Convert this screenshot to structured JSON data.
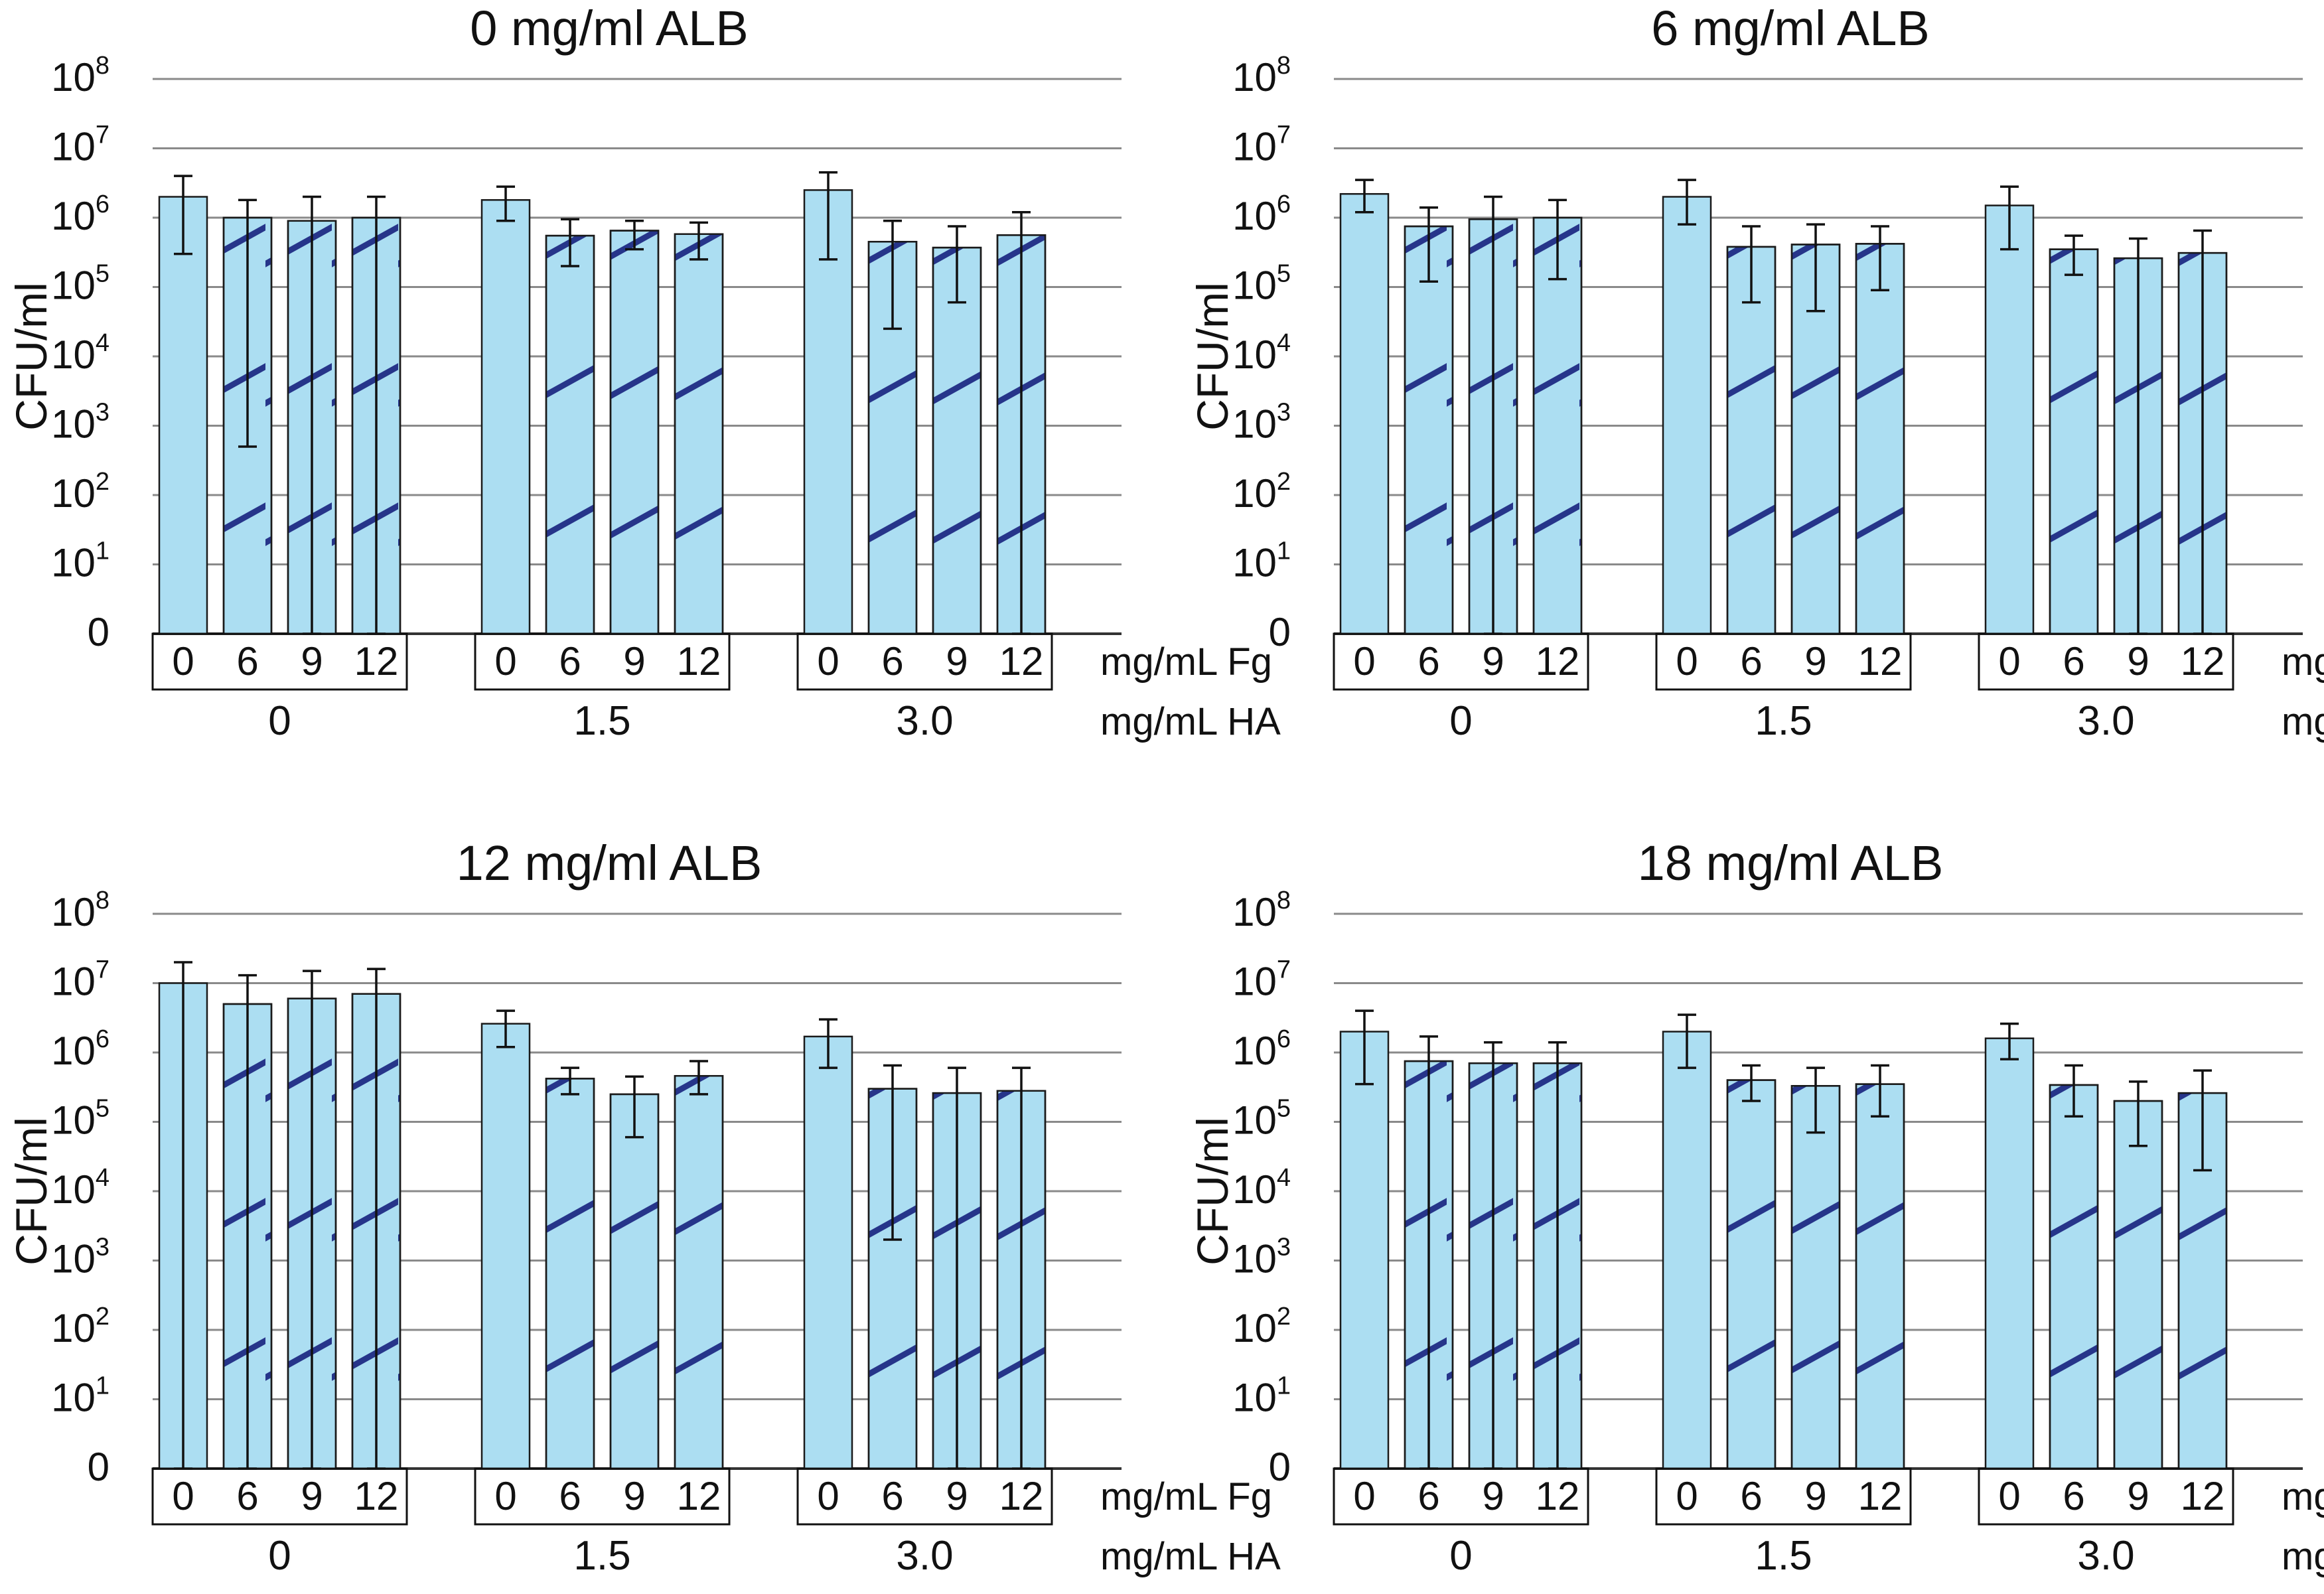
{
  "figure": {
    "fg_row_label": "mg/mL Fg",
    "ha_row_label": "mg/mL HA"
  },
  "chart_data": [
    {
      "type": "bar",
      "title": "0 mg/ml ALB",
      "ylabel": "CFU/ml",
      "yscale": "log",
      "y_tick_labels": [
        "0",
        "10^1",
        "10^2",
        "10^3",
        "10^4",
        "10^5",
        "10^6",
        "10^7",
        "10^8"
      ],
      "groups": [
        {
          "ha": "0",
          "fg": [
            "0",
            "6",
            "9",
            "12"
          ],
          "values": [
            2000000.0,
            1000000.0,
            900000.0,
            1000000.0
          ],
          "err_low": [
            300000.0,
            500,
            1,
            1
          ],
          "err_high": [
            4000000.0,
            1800000.0,
            2000000.0,
            2000000.0
          ]
        },
        {
          "ha": "1.5",
          "fg": [
            "0",
            "6",
            "9",
            "12"
          ],
          "values": [
            1800000.0,
            550000.0,
            650000.0,
            580000.0
          ],
          "err_low": [
            900000.0,
            200000.0,
            350000.0,
            250000.0
          ],
          "err_high": [
            2800000.0,
            950000.0,
            900000.0,
            850000.0
          ]
        },
        {
          "ha": "3.0",
          "fg": [
            "0",
            "6",
            "9",
            "12"
          ],
          "values": [
            2500000.0,
            450000.0,
            370000.0,
            560000.0
          ],
          "err_low": [
            250000.0,
            25000.0,
            60000.0,
            1
          ],
          "err_high": [
            4500000.0,
            900000.0,
            750000.0,
            1200000.0
          ]
        }
      ]
    },
    {
      "type": "bar",
      "title": "6 mg/ml ALB",
      "ylabel": "CFU/ml",
      "yscale": "log",
      "y_tick_labels": [
        "0",
        "10^1",
        "10^2",
        "10^3",
        "10^4",
        "10^5",
        "10^6",
        "10^7",
        "10^8"
      ],
      "groups": [
        {
          "ha": "0",
          "fg": [
            "0",
            "6",
            "9",
            "12"
          ],
          "values": [
            2200000.0,
            750000.0,
            950000.0,
            1000000.0
          ],
          "err_low": [
            1200000.0,
            120000.0,
            1,
            130000.0
          ],
          "err_high": [
            3500000.0,
            1400000.0,
            2000000.0,
            1800000.0
          ]
        },
        {
          "ha": "1.5",
          "fg": [
            "0",
            "6",
            "9",
            "12"
          ],
          "values": [
            2000000.0,
            380000.0,
            410000.0,
            420000.0
          ],
          "err_low": [
            800000.0,
            60000.0,
            45000.0,
            90000.0
          ],
          "err_high": [
            3500000.0,
            750000.0,
            800000.0,
            750000.0
          ]
        },
        {
          "ha": "3.0",
          "fg": [
            "0",
            "6",
            "9",
            "12"
          ],
          "values": [
            1500000.0,
            350000.0,
            260000.0,
            310000.0
          ],
          "err_low": [
            350000.0,
            150000.0,
            1,
            1
          ],
          "err_high": [
            2800000.0,
            550000.0,
            500000.0,
            650000.0
          ]
        }
      ]
    },
    {
      "type": "bar",
      "title": "12 mg/ml ALB",
      "ylabel": "CFU/ml",
      "yscale": "log",
      "y_tick_labels": [
        "0",
        "10^1",
        "10^2",
        "10^3",
        "10^4",
        "10^5",
        "10^6",
        "10^7",
        "10^8"
      ],
      "groups": [
        {
          "ha": "0",
          "fg": [
            "0",
            "6",
            "9",
            "12"
          ],
          "values": [
            10000000.0,
            5000000.0,
            6000000.0,
            7000000.0
          ],
          "err_low": [
            1,
            1,
            1,
            1
          ],
          "err_high": [
            20000000.0,
            13000000.0,
            15000000.0,
            16000000.0
          ]
        },
        {
          "ha": "1.5",
          "fg": [
            "0",
            "6",
            "9",
            "12"
          ],
          "values": [
            2600000.0,
            420000.0,
            250000.0,
            460000.0
          ],
          "err_low": [
            1200000.0,
            250000.0,
            60000.0,
            250000.0
          ],
          "err_high": [
            4000000.0,
            600000.0,
            450000.0,
            750000.0
          ]
        },
        {
          "ha": "3.0",
          "fg": [
            "0",
            "6",
            "9",
            "12"
          ],
          "values": [
            1700000.0,
            300000.0,
            260000.0,
            280000.0
          ],
          "err_low": [
            600000.0,
            2000,
            1,
            1
          ],
          "err_high": [
            3000000.0,
            650000.0,
            600000.0,
            600000.0
          ]
        }
      ]
    },
    {
      "type": "bar",
      "title": "18 mg/ml ALB",
      "ylabel": "CFU/ml",
      "yscale": "log",
      "y_tick_labels": [
        "0",
        "10^1",
        "10^2",
        "10^3",
        "10^4",
        "10^5",
        "10^6",
        "10^7",
        "10^8"
      ],
      "groups": [
        {
          "ha": "0",
          "fg": [
            "0",
            "6",
            "9",
            "12"
          ],
          "values": [
            2000000.0,
            750000.0,
            700000.0,
            700000.0
          ],
          "err_low": [
            350000.0,
            1,
            1,
            1
          ],
          "err_high": [
            4000000.0,
            1700000.0,
            1400000.0,
            1400000.0
          ]
        },
        {
          "ha": "1.5",
          "fg": [
            "0",
            "6",
            "9",
            "12"
          ],
          "values": [
            2000000.0,
            400000.0,
            330000.0,
            350000.0
          ],
          "err_low": [
            600000.0,
            200000.0,
            70000.0,
            120000.0
          ],
          "err_high": [
            3500000.0,
            650000.0,
            600000.0,
            650000.0
          ]
        },
        {
          "ha": "3.0",
          "fg": [
            "0",
            "6",
            "9",
            "12"
          ],
          "values": [
            1600000.0,
            340000.0,
            200000.0,
            260000.0
          ],
          "err_low": [
            800000.0,
            120000.0,
            45000.0,
            20000.0
          ],
          "err_high": [
            2600000.0,
            650000.0,
            380000.0,
            550000.0
          ]
        }
      ]
    }
  ],
  "colors": {
    "bar_fill": "#acdef2",
    "bar_stroke": "#1a1a1a",
    "hatch": "#26358a",
    "grid": "#8a8a8a",
    "text": "#111111"
  }
}
